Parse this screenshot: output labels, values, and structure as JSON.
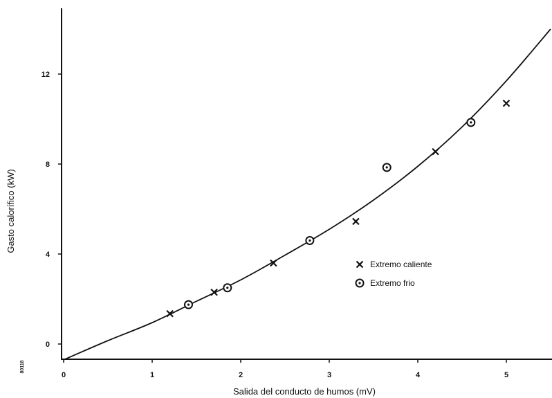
{
  "chart_data": {
    "type": "scatter",
    "title": "",
    "xlabel": "Salida del conducto de humos (mV)",
    "ylabel": "Gasto calorífico (kW)",
    "xlim": [
      0,
      5.5
    ],
    "ylim": [
      -0.7,
      14.5
    ],
    "x_ticks": [
      "0",
      "1",
      "2",
      "3",
      "4",
      "5"
    ],
    "y_ticks": [
      "0",
      "4",
      "8",
      "12"
    ],
    "grid": false,
    "legend": "right",
    "series": [
      {
        "name": "Extremo caliente",
        "marker": "x",
        "x": [
          1.2,
          1.7,
          2.37,
          3.3,
          4.2,
          5.0
        ],
        "y": [
          1.35,
          2.3,
          3.6,
          5.45,
          8.55,
          10.7
        ]
      },
      {
        "name": "Extremo frio",
        "marker": "circle-dot",
        "x": [
          1.41,
          1.85,
          2.78,
          3.65,
          4.6
        ],
        "y": [
          1.75,
          2.5,
          4.6,
          7.85,
          9.85
        ]
      }
    ],
    "fitted_curve": {
      "x": [
        0,
        0.5,
        1,
        1.5,
        2,
        2.5,
        3,
        3.5,
        4,
        4.5,
        5,
        5.5
      ],
      "y": [
        -0.7,
        0.15,
        0.95,
        1.9,
        2.85,
        3.95,
        5.1,
        6.4,
        7.9,
        9.65,
        11.7,
        14.0
      ]
    },
    "side_annotation": "80118"
  }
}
